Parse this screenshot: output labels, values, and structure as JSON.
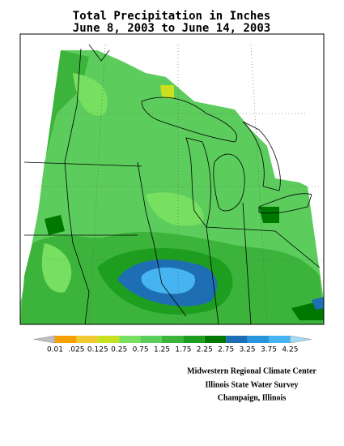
{
  "title": [
    "Total Precipitation in Inches",
    "June 8, 2003 to June 14, 2003"
  ],
  "legend": {
    "labels": [
      "0.01",
      ".025",
      "0.125",
      "0.25",
      "0.75",
      "1.25",
      "1.75",
      "2.25",
      "2.75",
      "3.25",
      "3.75",
      "4.25"
    ],
    "colors": [
      "#bdbdbd",
      "#f5a000",
      "#f0c832",
      "#c8e01e",
      "#78e060",
      "#5ccc5c",
      "#3cb43c",
      "#1e9e1e",
      "#007800",
      "#1e6eb4",
      "#2896dc",
      "#46b4f0",
      "#a0dcf8"
    ]
  },
  "credits": [
    "Midwestern Regional Climate Center",
    "Illinois State Water Survey",
    "Champaign, Illinois"
  ]
}
